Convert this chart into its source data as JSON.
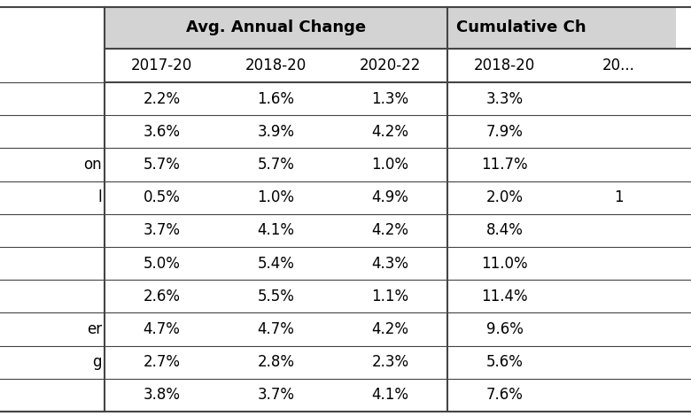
{
  "subheaders": [
    "2017-20",
    "2018-20",
    "2020-22",
    "2018-20",
    "20..."
  ],
  "row_labels": [
    "",
    "",
    "on",
    "l",
    "",
    "",
    "",
    "er",
    "g",
    ""
  ],
  "data": [
    [
      "2.2%",
      "1.6%",
      "1.3%",
      "3.3%",
      ""
    ],
    [
      "3.6%",
      "3.9%",
      "4.2%",
      "7.9%",
      ""
    ],
    [
      "5.7%",
      "5.7%",
      "1.0%",
      "11.7%",
      ""
    ],
    [
      "0.5%",
      "1.0%",
      "4.9%",
      "2.0%",
      "1"
    ],
    [
      "3.7%",
      "4.1%",
      "4.2%",
      "8.4%",
      ""
    ],
    [
      "5.0%",
      "5.4%",
      "4.3%",
      "11.0%",
      ""
    ],
    [
      "2.6%",
      "5.5%",
      "1.1%",
      "11.4%",
      ""
    ],
    [
      "4.7%",
      "4.7%",
      "4.2%",
      "9.6%",
      ""
    ],
    [
      "2.7%",
      "2.8%",
      "2.3%",
      "5.6%",
      ""
    ],
    [
      "3.8%",
      "3.7%",
      "4.1%",
      "7.6%",
      ""
    ]
  ],
  "group1_label": "Avg. Annual Change",
  "group2_label": "Cumulative Ch",
  "header_bg": "#d3d3d3",
  "cell_bg": "#ffffff",
  "border_color": "#444444",
  "text_color": "#000000",
  "header_fontsize": 13,
  "subheader_fontsize": 12,
  "cell_fontsize": 12,
  "fig_width": 7.8,
  "fig_height": 4.7,
  "dpi": 100
}
